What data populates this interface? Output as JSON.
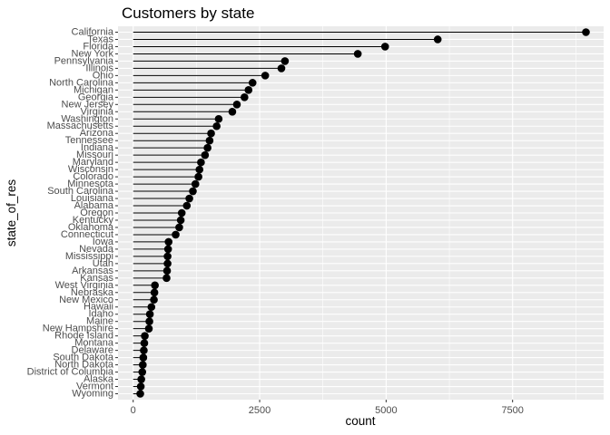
{
  "chart_data": {
    "type": "lollipop",
    "title": "Customers by state",
    "xlabel": "count",
    "ylabel": "state_of_res",
    "xlim": [
      -300,
      9300
    ],
    "xticks": [
      0,
      2500,
      5000,
      7500
    ],
    "xtick_labels": [
      "0",
      "2500",
      "5000",
      "7500"
    ],
    "grid": true,
    "panel_background": "#ebebeb",
    "grid_color": "#ffffff",
    "point_color": "#000000",
    "categories": [
      "California",
      "Texas",
      "Florida",
      "New York",
      "Pennsylvania",
      "Illinois",
      "Ohio",
      "North Carolina",
      "Michigan",
      "Georgia",
      "New Jersey",
      "Virginia",
      "Washington",
      "Massachusetts",
      "Arizona",
      "Tennessee",
      "Indiana",
      "Missouri",
      "Maryland",
      "Wisconsin",
      "Colorado",
      "Minnesota",
      "South Carolina",
      "Louisiana",
      "Alabama",
      "Oregon",
      "Kentucky",
      "Oklahoma",
      "Connecticut",
      "Iowa",
      "Nevada",
      "Mississippi",
      "Utah",
      "Arkansas",
      "Kansas",
      "West Virginia",
      "Nebraska",
      "New Mexico",
      "Hawaii",
      "Idaho",
      "Maine",
      "New Hampshire",
      "Rhode Island",
      "Montana",
      "Delaware",
      "South Dakota",
      "North Dakota",
      "District of Columbia",
      "Alaska",
      "Vermont",
      "Wyoming"
    ],
    "values": [
      8950,
      6020,
      4980,
      4440,
      3000,
      2930,
      2610,
      2360,
      2280,
      2200,
      2050,
      1960,
      1690,
      1650,
      1540,
      1510,
      1470,
      1420,
      1340,
      1310,
      1290,
      1230,
      1180,
      1110,
      1060,
      960,
      940,
      910,
      840,
      700,
      690,
      680,
      680,
      670,
      660,
      430,
      420,
      410,
      360,
      330,
      320,
      310,
      230,
      220,
      210,
      200,
      190,
      180,
      160,
      150,
      140
    ]
  }
}
